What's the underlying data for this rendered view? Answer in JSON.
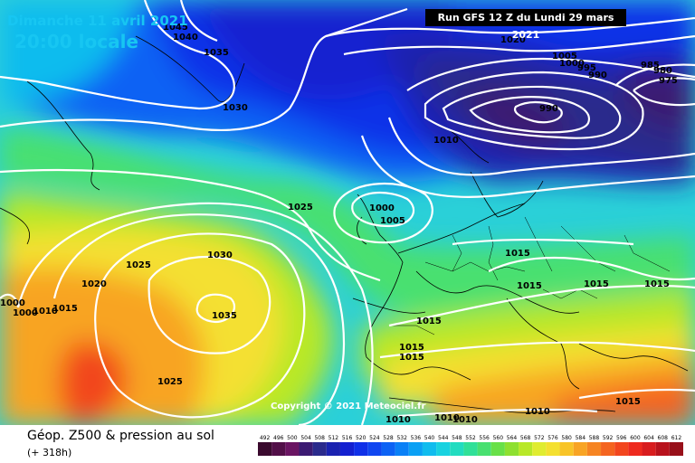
{
  "header": {
    "date": "Dimanche 11 avril 2021",
    "time": "20:00 locale",
    "run": "Run GFS 12 Z du Lundi 29 mars 2021"
  },
  "copyright": "Copyright © 2021 Meteociel.fr",
  "legend": {
    "title": "Géop. Z500 & pression au sol",
    "subtitle": "(+ 318h)",
    "ticks": [
      "492",
      "496",
      "500",
      "504",
      "508",
      "512",
      "516",
      "520",
      "524",
      "528",
      "532",
      "536",
      "540",
      "544",
      "548",
      "552",
      "556",
      "560",
      "564",
      "568",
      "572",
      "576",
      "580",
      "584",
      "588",
      "592",
      "596",
      "600",
      "604",
      "608",
      "612"
    ],
    "colors": [
      "#3a0a2e",
      "#520f48",
      "#6a1462",
      "#3b1a72",
      "#2a2a8c",
      "#1a22b0",
      "#1420d0",
      "#1030e8",
      "#1046f0",
      "#0c62f4",
      "#0a80f6",
      "#0aa0f4",
      "#10bcee",
      "#18d2e0",
      "#22dcc0",
      "#30e098",
      "#48e070",
      "#68e048",
      "#8ee030",
      "#b8e828",
      "#e0ec30",
      "#f4e030",
      "#f8c428",
      "#f8a424",
      "#f68422",
      "#f46420",
      "#f2461e",
      "#ee2a1e",
      "#d81c1e",
      "#b8121c",
      "#98101a"
    ]
  },
  "pressure_labels": [
    "1045",
    "1040",
    "1035",
    "1030",
    "1020",
    "1005",
    "1000",
    "995",
    "990",
    "985",
    "980",
    "975",
    "990",
    "1010",
    "1000",
    "1005",
    "1025",
    "1015",
    "1030",
    "1025",
    "1020",
    "1035",
    "1000",
    "1000",
    "1010",
    "1015",
    "1015",
    "1015",
    "1015",
    "1015",
    "1015",
    "1015",
    "1025",
    "1010",
    "1010",
    "1010",
    "1010",
    "1015"
  ]
}
